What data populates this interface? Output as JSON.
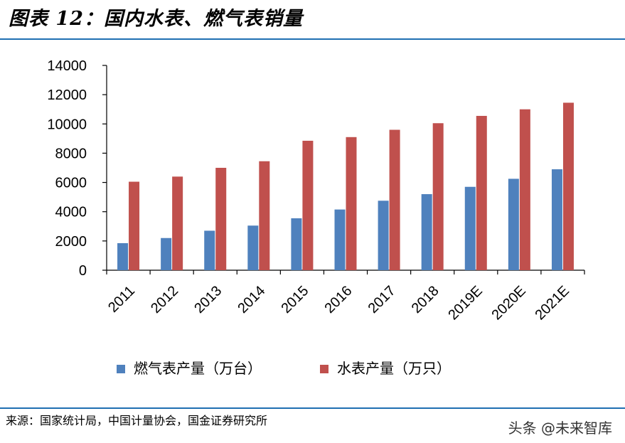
{
  "header": {
    "title": "图表 12：国内水表、燃气表销量"
  },
  "footer": {
    "source": "来源：国家统计局，中国计量协会，国金证券研究所",
    "watermark": "头条 @未来智库"
  },
  "chart_data": {
    "type": "bar",
    "title": "",
    "xlabel": "",
    "ylabel": "",
    "categories": [
      "2011",
      "2012",
      "2013",
      "2014",
      "2015",
      "2016",
      "2017",
      "2018",
      "2019E",
      "2020E",
      "2021E"
    ],
    "ylim": [
      0,
      14000
    ],
    "yticks": [
      0,
      2000,
      4000,
      6000,
      8000,
      10000,
      12000,
      14000
    ],
    "grid": false,
    "legend_position": "bottom",
    "series": [
      {
        "name": "燃气表产量（万台）",
        "color": "#4f81bd",
        "values": [
          1850,
          2200,
          2700,
          3050,
          3550,
          4150,
          4750,
          5200,
          5700,
          6250,
          6900
        ]
      },
      {
        "name": "水表产量（万只）",
        "color": "#c0504d",
        "values": [
          6050,
          6400,
          7000,
          7450,
          8850,
          9100,
          9600,
          10050,
          10550,
          11000,
          11450
        ]
      }
    ]
  }
}
